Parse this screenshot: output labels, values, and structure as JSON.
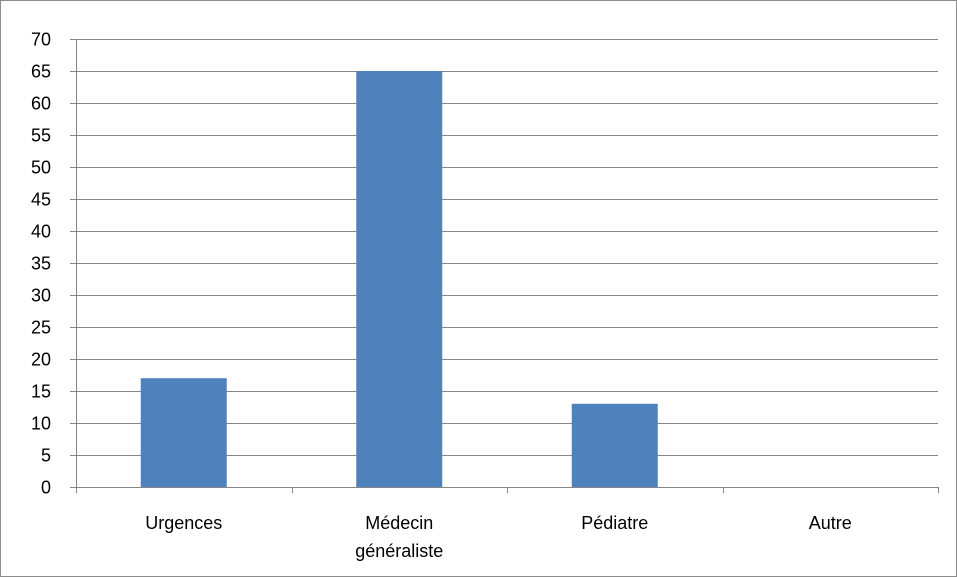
{
  "chart_data": {
    "type": "bar",
    "categories": [
      [
        "Urgences"
      ],
      [
        "Médecin",
        "généraliste"
      ],
      [
        "Pédiatre"
      ],
      [
        "Autre"
      ]
    ],
    "values": [
      17,
      65,
      13,
      0
    ],
    "ylim": [
      0,
      70
    ],
    "yticks": [
      0,
      5,
      10,
      15,
      20,
      25,
      30,
      35,
      40,
      45,
      50,
      55,
      60,
      65,
      70
    ],
    "grid": true,
    "colors": {
      "bar": "#4f81bd",
      "grid": "#868686",
      "axis": "#868686"
    }
  }
}
